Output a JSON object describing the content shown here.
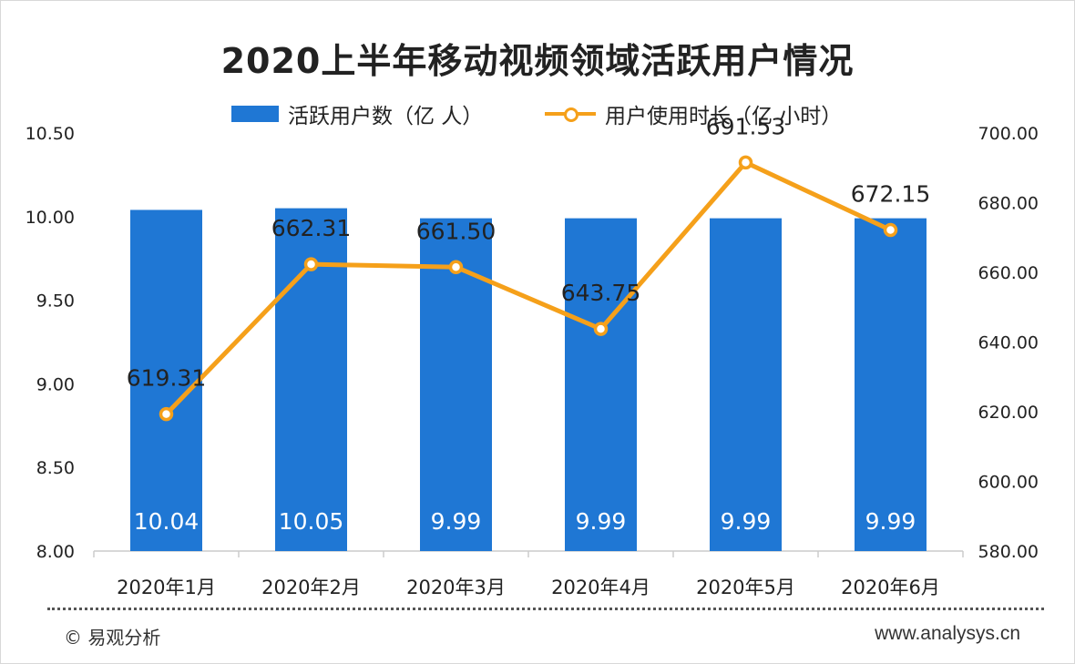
{
  "title": "2020上半年移动视频领域活跃用户情况",
  "colors": {
    "bar": "#1f77d4",
    "line": "#f5a01a",
    "bar_label": "#ffffff",
    "text": "#222222",
    "axis": "#cccccc"
  },
  "legend": {
    "bar_label": "活跃用户数（亿 人）",
    "line_label": "用户使用时长（亿 小时）"
  },
  "chart_data": {
    "type": "bar",
    "title": "2020上半年移动视频领域活跃用户情况",
    "categories": [
      "2020年1月",
      "2020年2月",
      "2020年3月",
      "2020年4月",
      "2020年5月",
      "2020年6月"
    ],
    "series": [
      {
        "name": "活跃用户数（亿 人）",
        "type": "bar",
        "axis": "left",
        "values": [
          10.04,
          10.05,
          9.99,
          9.99,
          9.99,
          9.99
        ],
        "labels": [
          "10.04",
          "10.05",
          "9.99",
          "9.99",
          "9.99",
          "9.99"
        ]
      },
      {
        "name": "用户使用时长（亿 小时）",
        "type": "line",
        "axis": "right",
        "values": [
          619.31,
          662.31,
          661.5,
          643.75,
          691.53,
          672.15
        ],
        "labels": [
          "619.31",
          "662.31",
          "661.50",
          "643.75",
          "691.53",
          "672.15"
        ]
      }
    ],
    "y_left": {
      "min": 8.0,
      "max": 10.5,
      "ticks": [
        "8.00",
        "8.50",
        "9.00",
        "9.50",
        "10.00",
        "10.50"
      ]
    },
    "y_right": {
      "min": 580,
      "max": 700,
      "ticks": [
        "580.00",
        "600.00",
        "620.00",
        "640.00",
        "660.00",
        "680.00",
        "700.00"
      ]
    },
    "grid": false,
    "legend_position": "top"
  },
  "footer": {
    "source": "© 易观分析",
    "website": "www.analysys.cn"
  }
}
